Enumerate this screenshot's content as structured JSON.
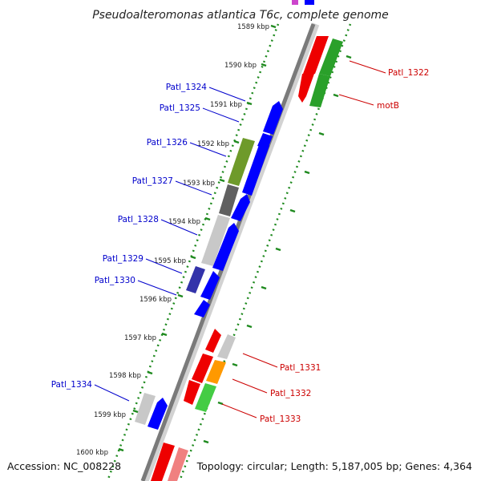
{
  "title": "Pseudoalteromonas atlantica T6c, complete genome",
  "footer": {
    "accession": "Accession: NC_008228",
    "summary": "Topology: circular; Length: 5,187,005 bp; Genes: 4,364"
  },
  "colors": {
    "backbone": "#7a7a7a",
    "tick_track": "#1f8a1f",
    "minus_label": "#0000cc",
    "plus_label": "#cc0000"
  },
  "kbp_ticks": [
    "1589 kbp",
    "1590 kbp",
    "1591 kbp",
    "1592 kbp",
    "1593 kbp",
    "1594 kbp",
    "1595 kbp",
    "1596 kbp",
    "1597 kbp",
    "1598 kbp",
    "1599 kbp",
    "1600 kbp"
  ],
  "gene_labels": {
    "left": [
      "Patl_1324",
      "Patl_1325",
      "Patl_1326",
      "Patl_1327",
      "Patl_1328",
      "Patl_1329",
      "Patl_1330",
      "Patl_1334"
    ],
    "right": [
      "Patl_1322",
      "motB",
      "Patl_1331",
      "Patl_1332",
      "Patl_1333"
    ]
  }
}
